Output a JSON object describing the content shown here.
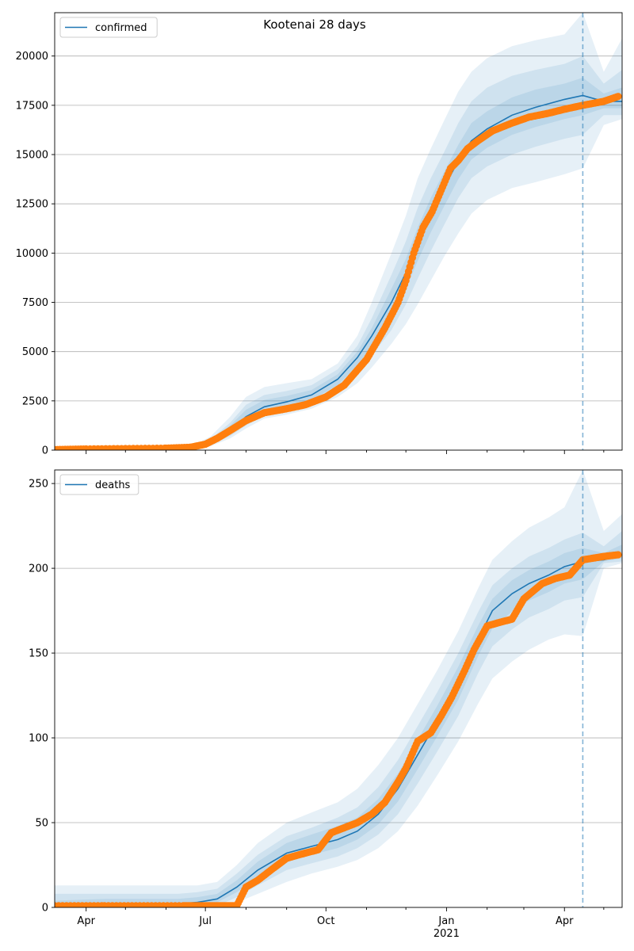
{
  "figure": {
    "title": "Kootenai 28 days"
  },
  "colors": {
    "model_line": "#1f77b4",
    "observed_points": "#ff7f0e",
    "band": "#1f77b4",
    "grid": "#b0b0b0",
    "forecast_line": "#1f77b4"
  },
  "x_axis": {
    "start_date": "2020-03-08",
    "end_date": "2021-05-15",
    "major_ticks": [
      {
        "date": "2020-04-01",
        "label": "Apr"
      },
      {
        "date": "2020-07-01",
        "label": "Jul"
      },
      {
        "date": "2020-10-01",
        "label": "Oct"
      },
      {
        "date": "2021-01-01",
        "label": "Jan"
      },
      {
        "date": "2021-04-01",
        "label": "Apr"
      }
    ],
    "year_label": {
      "date": "2021-01-01",
      "label": "2021"
    },
    "forecast_start": "2021-04-15"
  },
  "chart_data": [
    {
      "type": "line",
      "name": "confirmed",
      "legend": {
        "label": "confirmed",
        "location": "top-left"
      },
      "ylim": [
        0,
        22200
      ],
      "yticks": [
        0,
        2500,
        5000,
        7500,
        10000,
        12500,
        15000,
        17500,
        20000
      ],
      "ytick_labels": [
        "0",
        "2500",
        "5000",
        "7500",
        "10000",
        "12500",
        "15000",
        "17500",
        "20000"
      ],
      "grid": true,
      "model": {
        "x": [
          "2020-03-08",
          "2020-04-15",
          "2020-06-10",
          "2020-06-25",
          "2020-07-05",
          "2020-07-20",
          "2020-08-01",
          "2020-08-15",
          "2020-09-01",
          "2020-09-20",
          "2020-10-10",
          "2020-10-25",
          "2020-11-05",
          "2020-11-20",
          "2020-12-01",
          "2020-12-10",
          "2020-12-20",
          "2020-12-30",
          "2021-01-10",
          "2021-01-20",
          "2021-02-01",
          "2021-02-20",
          "2021-03-10",
          "2021-04-01",
          "2021-04-15",
          "2021-05-01",
          "2021-05-15"
        ],
        "y": [
          50,
          70,
          100,
          180,
          400,
          1000,
          1700,
          2200,
          2450,
          2800,
          3600,
          4700,
          5800,
          7500,
          9000,
          10500,
          12000,
          13300,
          14700,
          15700,
          16300,
          17000,
          17400,
          17800,
          18000,
          17700,
          17700
        ]
      },
      "observed": {
        "x": [
          "2020-03-08",
          "2020-04-01",
          "2020-05-01",
          "2020-06-01",
          "2020-06-20",
          "2020-07-01",
          "2020-07-10",
          "2020-07-20",
          "2020-08-01",
          "2020-08-15",
          "2020-09-01",
          "2020-09-15",
          "2020-10-01",
          "2020-10-15",
          "2020-11-01",
          "2020-11-15",
          "2020-11-25",
          "2020-12-01",
          "2020-12-07",
          "2020-12-14",
          "2020-12-21",
          "2020-12-28",
          "2021-01-04",
          "2021-01-10",
          "2021-01-17",
          "2021-01-25",
          "2021-02-05",
          "2021-02-20",
          "2021-03-05",
          "2021-03-20",
          "2021-04-01",
          "2021-04-15",
          "2021-05-01",
          "2021-05-12"
        ],
        "y": [
          30,
          60,
          80,
          100,
          150,
          300,
          600,
          1000,
          1500,
          1900,
          2100,
          2300,
          2700,
          3300,
          4600,
          6200,
          7500,
          8600,
          10000,
          11300,
          12100,
          13200,
          14300,
          14700,
          15300,
          15700,
          16200,
          16600,
          16900,
          17100,
          17300,
          17500,
          17700,
          17950
        ]
      },
      "bands": [
        {
          "level": "outer",
          "upper": [
            120,
            150,
            250,
            350,
            700,
            1700,
            2700,
            3200,
            3400,
            3600,
            4400,
            5800,
            7500,
            10000,
            11900,
            13800,
            15300,
            16700,
            18200,
            19200,
            19900,
            20500,
            20800,
            21100,
            22200,
            19200,
            20900
          ],
          "lower": [
            0,
            0,
            20,
            60,
            200,
            600,
            1100,
            1600,
            1800,
            2100,
            2700,
            3400,
            4200,
            5400,
            6400,
            7400,
            8600,
            9800,
            11000,
            12000,
            12700,
            13300,
            13600,
            14000,
            14300,
            16500,
            16800
          ]
        },
        {
          "level": "middle",
          "upper": [
            100,
            120,
            200,
            280,
            560,
            1400,
            2300,
            2800,
            3000,
            3300,
            4100,
            5300,
            6700,
            8900,
            10600,
            12300,
            13800,
            15100,
            16600,
            17700,
            18400,
            19000,
            19300,
            19600,
            20000,
            18600,
            19300
          ],
          "lower": [
            10,
            20,
            40,
            100,
            260,
            720,
            1250,
            1750,
            1950,
            2300,
            3000,
            3900,
            4800,
            6100,
            7400,
            8700,
            10100,
            11400,
            12800,
            13800,
            14400,
            15000,
            15400,
            15800,
            16000,
            17000,
            17000
          ]
        },
        {
          "level": "inner",
          "upper": [
            80,
            100,
            160,
            230,
            480,
            1250,
            2050,
            2550,
            2750,
            3050,
            3850,
            5000,
            6200,
            8200,
            9700,
            11300,
            12800,
            14100,
            15500,
            16600,
            17200,
            17900,
            18300,
            18600,
            18900,
            18100,
            18400
          ]
        }
      ]
    },
    {
      "type": "line",
      "name": "deaths",
      "legend": {
        "label": "deaths",
        "location": "top-left"
      },
      "ylim": [
        0,
        258
      ],
      "yticks": [
        0,
        50,
        100,
        150,
        200,
        250
      ],
      "ytick_labels": [
        "0",
        "50",
        "100",
        "150",
        "200",
        "250"
      ],
      "grid": true,
      "model": {
        "x": [
          "2020-03-08",
          "2020-04-15",
          "2020-06-10",
          "2020-06-25",
          "2020-07-10",
          "2020-07-25",
          "2020-08-10",
          "2020-09-01",
          "2020-09-20",
          "2020-10-10",
          "2020-10-25",
          "2020-11-10",
          "2020-11-25",
          "2020-12-10",
          "2020-12-25",
          "2021-01-10",
          "2021-01-25",
          "2021-02-05",
          "2021-02-20",
          "2021-03-05",
          "2021-03-20",
          "2021-04-01",
          "2021-04-15",
          "2021-05-01",
          "2021-05-15"
        ],
        "y": [
          1,
          2,
          2,
          3,
          5,
          12,
          22,
          32,
          36,
          40,
          45,
          55,
          70,
          90,
          110,
          132,
          158,
          175,
          185,
          191,
          196,
          201,
          204,
          205,
          208
        ]
      },
      "observed": {
        "x": [
          "2020-03-08",
          "2020-04-15",
          "2020-05-15",
          "2020-06-15",
          "2020-07-01",
          "2020-07-15",
          "2020-07-25",
          "2020-08-01",
          "2020-08-10",
          "2020-08-20",
          "2020-09-01",
          "2020-09-15",
          "2020-09-25",
          "2020-10-05",
          "2020-10-15",
          "2020-10-25",
          "2020-11-05",
          "2020-11-15",
          "2020-11-25",
          "2020-12-01",
          "2020-12-10",
          "2020-12-20",
          "2020-12-28",
          "2021-01-05",
          "2021-01-15",
          "2021-01-22",
          "2021-02-01",
          "2021-02-10",
          "2021-02-20",
          "2021-03-01",
          "2021-03-15",
          "2021-03-25",
          "2021-04-05",
          "2021-04-15",
          "2021-05-01",
          "2021-05-12"
        ],
        "y": [
          1,
          1,
          1,
          1,
          1,
          1,
          1,
          12,
          16,
          22,
          29,
          32,
          34,
          44,
          47,
          50,
          55,
          62,
          74,
          82,
          98,
          103,
          113,
          124,
          140,
          152,
          166,
          168,
          170,
          182,
          191,
          194,
          196,
          205,
          207,
          208
        ]
      },
      "bands": [
        {
          "level": "outer",
          "upper": [
            13,
            13,
            13,
            13,
            15,
            25,
            38,
            50,
            56,
            62,
            70,
            84,
            100,
            120,
            140,
            163,
            188,
            205,
            216,
            224,
            230,
            236,
            258,
            222,
            232
          ],
          "lower": [
            0,
            0,
            0,
            0,
            0,
            3,
            8,
            15,
            20,
            24,
            28,
            35,
            45,
            60,
            78,
            98,
            120,
            135,
            145,
            152,
            158,
            161,
            160,
            200,
            203
          ]
        },
        {
          "level": "middle",
          "upper": [
            8,
            8,
            8,
            9,
            11,
            20,
            31,
            42,
            47,
            53,
            59,
            71,
            87,
            107,
            127,
            150,
            174,
            190,
            200,
            207,
            212,
            217,
            221,
            213,
            222
          ],
          "lower": [
            0,
            0,
            0,
            0,
            1,
            6,
            13,
            22,
            26,
            30,
            35,
            43,
            55,
            73,
            92,
            113,
            138,
            154,
            164,
            171,
            176,
            181,
            183,
            203,
            204
          ]
        },
        {
          "level": "inner",
          "upper": [
            4,
            5,
            5,
            6,
            8,
            16,
            27,
            38,
            43,
            48,
            53,
            64,
            79,
            99,
            119,
            142,
            166,
            182,
            193,
            199,
            204,
            209,
            212,
            209,
            214
          ]
        }
      ]
    }
  ]
}
